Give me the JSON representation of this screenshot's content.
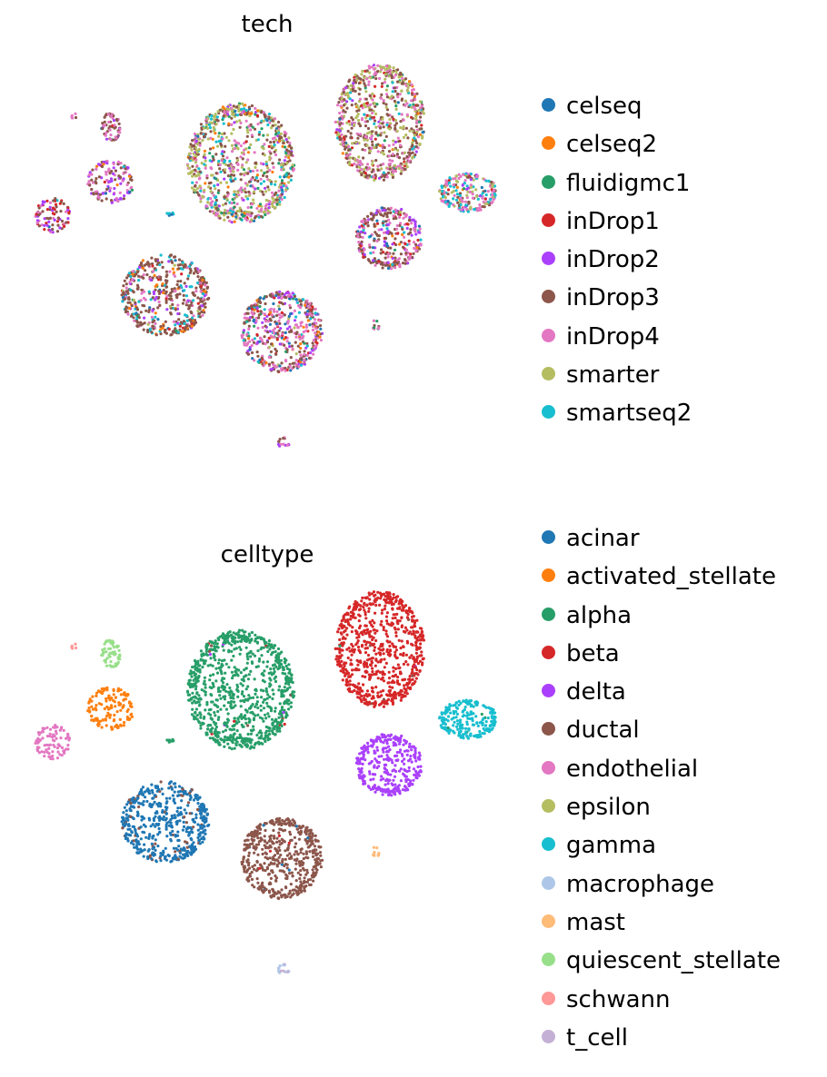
{
  "chart_data": [
    {
      "type": "scatter",
      "title": "tech",
      "legend": "right",
      "grid": false,
      "axes_visible": false,
      "series": [
        {
          "name": "celseq",
          "color": "#1f77b4"
        },
        {
          "name": "celseq2",
          "color": "#ff7f0e"
        },
        {
          "name": "fluidigmc1",
          "color": "#279e68"
        },
        {
          "name": "inDrop1",
          "color": "#d62728"
        },
        {
          "name": "inDrop2",
          "color": "#aa40fc"
        },
        {
          "name": "inDrop3",
          "color": "#8c564b"
        },
        {
          "name": "inDrop4",
          "color": "#e377c2"
        },
        {
          "name": "smarter",
          "color": "#b5bd61"
        },
        {
          "name": "smartseq2",
          "color": "#17becf"
        }
      ],
      "clusters": [
        {
          "center": [
            265,
            180
          ],
          "spread": [
            55,
            62
          ],
          "n": 900,
          "mix": [
            0.03,
            0.05,
            0.05,
            0.01,
            0.04,
            0.22,
            0.2,
            0.3,
            0.1
          ]
        },
        {
          "center": [
            418,
            135
          ],
          "spread": [
            46,
            60
          ],
          "n": 750,
          "mix": [
            0.01,
            0.02,
            0.02,
            0.04,
            0.03,
            0.35,
            0.25,
            0.25,
            0.03
          ]
        },
        {
          "center": [
            182,
            325
          ],
          "spread": [
            45,
            42
          ],
          "n": 520,
          "mix": [
            0.03,
            0.06,
            0.01,
            0.02,
            0.05,
            0.55,
            0.13,
            0.02,
            0.13
          ]
        },
        {
          "center": [
            310,
            365
          ],
          "spread": [
            42,
            42
          ],
          "n": 520,
          "mix": [
            0.07,
            0.05,
            0.03,
            0.04,
            0.1,
            0.33,
            0.3,
            0.03,
            0.05
          ]
        },
        {
          "center": [
            428,
            262
          ],
          "spread": [
            34,
            32
          ],
          "n": 330,
          "mix": [
            0.03,
            0.03,
            0.01,
            0.07,
            0.15,
            0.35,
            0.3,
            0.01,
            0.05
          ]
        },
        {
          "center": [
            515,
            212
          ],
          "spread": [
            30,
            20
          ],
          "n": 230,
          "mix": [
            0.02,
            0.02,
            0.01,
            0.02,
            0.08,
            0.16,
            0.3,
            0.17,
            0.22
          ]
        },
        {
          "center": [
            122,
            200
          ],
          "spread": [
            24,
            22
          ],
          "n": 140,
          "mix": [
            0.01,
            0.03,
            0.01,
            0.01,
            0.33,
            0.3,
            0.3,
            0.0,
            0.01
          ]
        },
        {
          "center": [
            58,
            237
          ],
          "spread": [
            18,
            18
          ],
          "n": 90,
          "mix": [
            0.01,
            0.01,
            0.01,
            0.22,
            0.27,
            0.3,
            0.17,
            0.0,
            0.01
          ]
        },
        {
          "center": [
            122,
            140
          ],
          "spread": [
            10,
            15
          ],
          "n": 60,
          "mix": [
            0.02,
            0.02,
            0.0,
            0.05,
            0.1,
            0.4,
            0.4,
            0.0,
            0.01
          ]
        },
        {
          "center": [
            312,
            488
          ],
          "spread": [
            6,
            6
          ],
          "n": 14,
          "mix": [
            0.0,
            0.0,
            0.0,
            0.0,
            0.35,
            0.35,
            0.3,
            0.0,
            0.0
          ]
        },
        {
          "center": [
            413,
            359
          ],
          "spread": [
            4,
            6
          ],
          "n": 10,
          "mix": [
            0.0,
            0.0,
            0.3,
            0.0,
            0.0,
            0.35,
            0.35,
            0.0,
            0.0
          ]
        },
        {
          "center": [
            82,
            128
          ],
          "spread": [
            3,
            3
          ],
          "n": 5,
          "mix": [
            0.0,
            0.0,
            0.0,
            0.0,
            0.0,
            0.5,
            0.5,
            0.0,
            0.0
          ]
        },
        {
          "center": [
            188,
            235
          ],
          "spread": [
            4,
            3
          ],
          "n": 6,
          "mix": [
            0.5,
            0.0,
            0.0,
            0.0,
            0.0,
            0.0,
            0.0,
            0.0,
            0.5
          ]
        }
      ]
    },
    {
      "type": "scatter",
      "title": "celltype",
      "legend": "right",
      "grid": false,
      "axes_visible": false,
      "series": [
        {
          "name": "acinar",
          "color": "#1f77b4"
        },
        {
          "name": "activated_stellate",
          "color": "#ff7f0e"
        },
        {
          "name": "alpha",
          "color": "#279e68"
        },
        {
          "name": "beta",
          "color": "#d62728"
        },
        {
          "name": "delta",
          "color": "#aa40fc"
        },
        {
          "name": "ductal",
          "color": "#8c564b"
        },
        {
          "name": "endothelial",
          "color": "#e377c2"
        },
        {
          "name": "epsilon",
          "color": "#b5bd61"
        },
        {
          "name": "gamma",
          "color": "#17becf"
        },
        {
          "name": "macrophage",
          "color": "#aec7e8"
        },
        {
          "name": "mast",
          "color": "#ffbb78"
        },
        {
          "name": "quiescent_stellate",
          "color": "#98df8a"
        },
        {
          "name": "schwann",
          "color": "#ff9896"
        },
        {
          "name": "t_cell",
          "color": "#c5b0d5"
        }
      ],
      "clusters": [
        {
          "center": [
            265,
            190
          ],
          "spread": [
            55,
            62
          ],
          "n": 900,
          "mix": [
            0,
            0,
            0.985,
            0.005,
            0.005,
            0.005,
            0,
            0,
            0,
            0,
            0,
            0,
            0,
            0
          ]
        },
        {
          "center": [
            418,
            145
          ],
          "spread": [
            46,
            60
          ],
          "n": 750,
          "mix": [
            0,
            0,
            0.002,
            0.99,
            0.003,
            0.005,
            0,
            0,
            0,
            0,
            0,
            0,
            0,
            0
          ]
        },
        {
          "center": [
            182,
            335
          ],
          "spread": [
            45,
            42
          ],
          "n": 520,
          "mix": [
            0.9,
            0,
            0,
            0,
            0,
            0.1,
            0,
            0,
            0,
            0,
            0,
            0,
            0,
            0
          ]
        },
        {
          "center": [
            310,
            375
          ],
          "spread": [
            42,
            42
          ],
          "n": 520,
          "mix": [
            0.01,
            0,
            0,
            0.01,
            0,
            0.98,
            0,
            0,
            0,
            0,
            0,
            0,
            0,
            0
          ]
        },
        {
          "center": [
            428,
            272
          ],
          "spread": [
            34,
            32
          ],
          "n": 330,
          "mix": [
            0,
            0,
            0,
            0,
            1,
            0,
            0,
            0,
            0,
            0,
            0,
            0,
            0,
            0
          ]
        },
        {
          "center": [
            515,
            222
          ],
          "spread": [
            30,
            20
          ],
          "n": 230,
          "mix": [
            0,
            0,
            0.03,
            0,
            0,
            0,
            0,
            0,
            0.97,
            0,
            0,
            0,
            0,
            0
          ]
        },
        {
          "center": [
            122,
            210
          ],
          "spread": [
            24,
            22
          ],
          "n": 140,
          "mix": [
            0,
            1,
            0,
            0,
            0,
            0,
            0,
            0,
            0,
            0,
            0,
            0,
            0,
            0
          ]
        },
        {
          "center": [
            58,
            247
          ],
          "spread": [
            18,
            18
          ],
          "n": 90,
          "mix": [
            0,
            0,
            0,
            0,
            0,
            0,
            1,
            0,
            0,
            0,
            0,
            0,
            0,
            0
          ]
        },
        {
          "center": [
            122,
            150
          ],
          "spread": [
            10,
            15
          ],
          "n": 60,
          "mix": [
            0,
            0,
            0,
            0,
            0,
            0,
            0,
            0,
            0,
            0,
            0,
            1,
            0,
            0
          ]
        },
        {
          "center": [
            312,
            498
          ],
          "spread": [
            6,
            6
          ],
          "n": 14,
          "mix": [
            0,
            0,
            0,
            0,
            0,
            0,
            0,
            0,
            0,
            0.6,
            0,
            0,
            0,
            0.4
          ]
        },
        {
          "center": [
            413,
            369
          ],
          "spread": [
            4,
            6
          ],
          "n": 10,
          "mix": [
            0,
            0,
            0,
            0,
            0,
            0,
            0,
            0,
            0,
            0,
            1,
            0,
            0,
            0
          ]
        },
        {
          "center": [
            82,
            142
          ],
          "spread": [
            3,
            3
          ],
          "n": 5,
          "mix": [
            0,
            0,
            0,
            0,
            0,
            0,
            0,
            0,
            0,
            0,
            0,
            0,
            1,
            0
          ]
        },
        {
          "center": [
            188,
            245
          ],
          "spread": [
            4,
            3
          ],
          "n": 6,
          "mix": [
            0,
            0,
            1,
            0,
            0,
            0,
            0,
            0,
            0,
            0,
            0,
            0,
            0,
            0
          ]
        }
      ]
    }
  ]
}
